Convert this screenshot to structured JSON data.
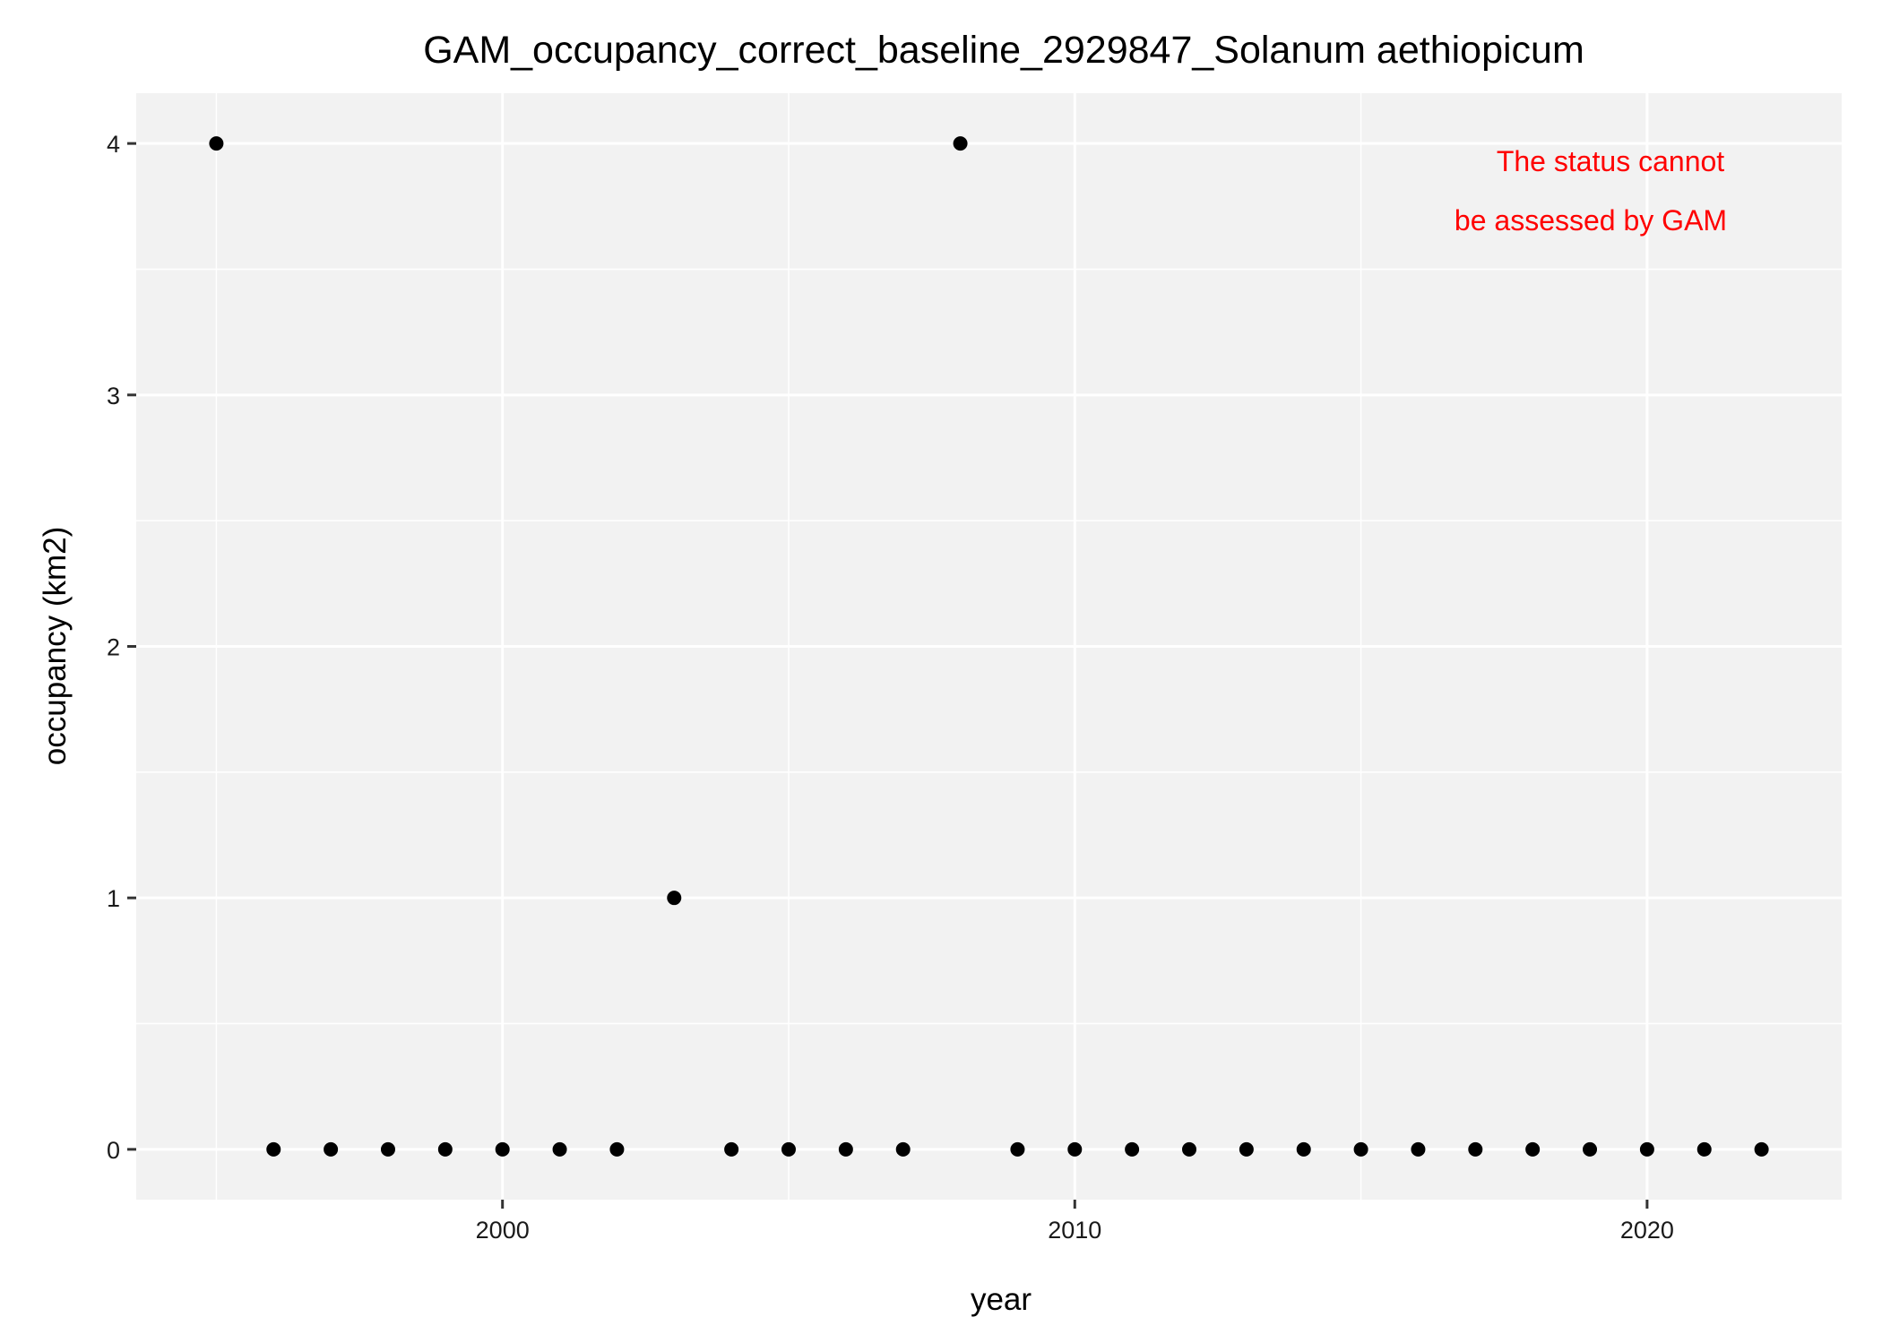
{
  "chart_data": {
    "type": "scatter",
    "title": "GAM_occupancy_correct_baseline_2929847_Solanum aethiopicum",
    "xlabel": "year",
    "ylabel": "occupancy (km2)",
    "xlim": [
      1993.6,
      2023.4
    ],
    "ylim": [
      -0.2,
      4.2
    ],
    "x_ticks": [
      2000,
      2010,
      2020
    ],
    "x_tick_labels": [
      "2000",
      "2010",
      "2020"
    ],
    "y_ticks": [
      0,
      1,
      2,
      3,
      4
    ],
    "y_tick_labels": [
      "0",
      "1",
      "2",
      "3",
      "4"
    ],
    "grid": true,
    "legend": "none",
    "annotation": {
      "lines": [
        "The status cannot",
        "be assessed by GAM"
      ],
      "color": "#ff0000"
    },
    "colors": {
      "panel_background": "#f2f2f2",
      "grid": "#ffffff",
      "points": "#000000"
    },
    "series": [
      {
        "x": [
          1995,
          1996,
          1997,
          1998,
          1999,
          2000,
          2001,
          2002,
          2003,
          2004,
          2005,
          2006,
          2007,
          2008,
          2009,
          2010,
          2011,
          2012,
          2013,
          2014,
          2015,
          2016,
          2017,
          2018,
          2019,
          2020,
          2021,
          2022
        ],
        "y": [
          4,
          0,
          0,
          0,
          0,
          0,
          0,
          0,
          1,
          0,
          0,
          0,
          0,
          4,
          0,
          0,
          0,
          0,
          0,
          0,
          0,
          0,
          0,
          0,
          0,
          0,
          0,
          0
        ]
      }
    ]
  }
}
